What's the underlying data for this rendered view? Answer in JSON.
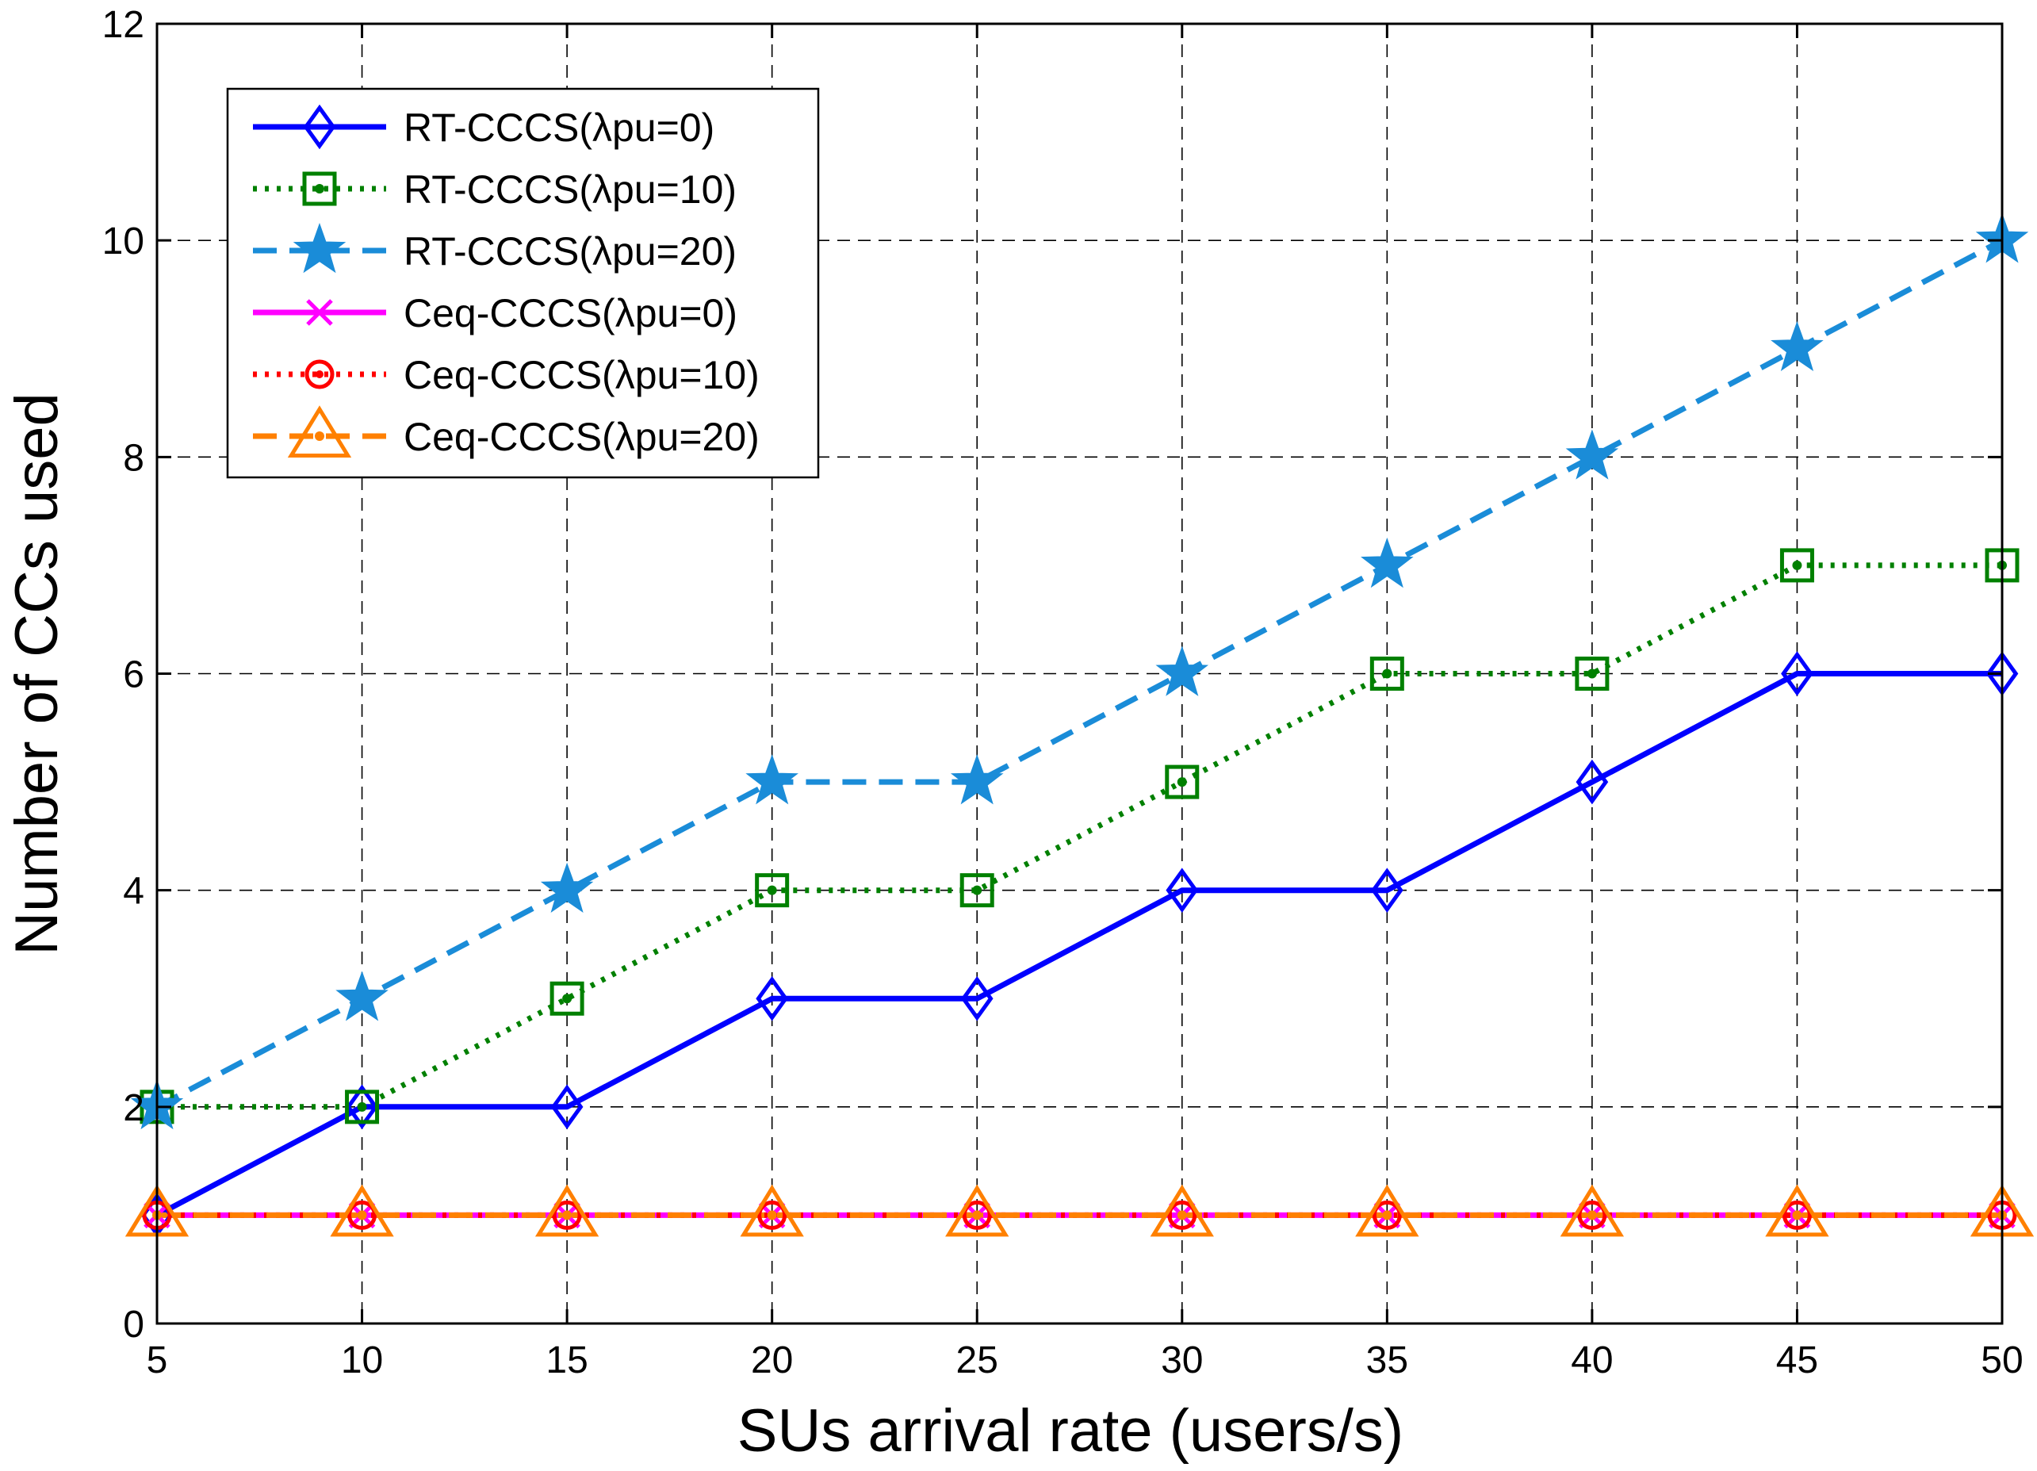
{
  "chart_data": {
    "type": "line",
    "title": "",
    "xlabel": "SUs arrival rate (users/s)",
    "ylabel": "Number of CCs used",
    "xlim": [
      5,
      50
    ],
    "ylim": [
      0,
      12
    ],
    "x": [
      5,
      10,
      15,
      20,
      25,
      30,
      35,
      40,
      45,
      50
    ],
    "xticks": [
      "5",
      "10",
      "15",
      "20",
      "25",
      "30",
      "35",
      "40",
      "45",
      "50"
    ],
    "yticks": [
      "0",
      "2",
      "4",
      "6",
      "8",
      "10",
      "12"
    ],
    "grid": true,
    "legend_position": "top-left",
    "series": [
      {
        "name": "RT-CCCS(λpu=0)",
        "values": [
          1,
          2,
          2,
          3,
          3,
          4,
          4,
          5,
          6,
          6
        ],
        "color": "#0000ff",
        "line": "solid",
        "marker": "diamond"
      },
      {
        "name": "RT-CCCS(λpu=10)",
        "values": [
          2,
          2,
          3,
          4,
          4,
          5,
          6,
          6,
          7,
          7
        ],
        "color": "#008000",
        "line": "dotted",
        "marker": "square"
      },
      {
        "name": "RT-CCCS(λpu=20)",
        "values": [
          2,
          3,
          4,
          5,
          5,
          6,
          7,
          8,
          9,
          10
        ],
        "color": "#1a8cd8",
        "line": "dashed",
        "marker": "star"
      },
      {
        "name": "Ceq-CCCS(λpu=0)",
        "values": [
          1,
          1,
          1,
          1,
          1,
          1,
          1,
          1,
          1,
          1
        ],
        "color": "#ff00ff",
        "line": "solid",
        "marker": "x"
      },
      {
        "name": "Ceq-CCCS(λpu=10)",
        "values": [
          1,
          1,
          1,
          1,
          1,
          1,
          1,
          1,
          1,
          1
        ],
        "color": "#ff0000",
        "line": "dotted",
        "marker": "circle"
      },
      {
        "name": "Ceq-CCCS(λpu=20)",
        "values": [
          1,
          1,
          1,
          1,
          1,
          1,
          1,
          1,
          1,
          1
        ],
        "color": "#ff8000",
        "line": "dashed",
        "marker": "triangle"
      }
    ]
  }
}
